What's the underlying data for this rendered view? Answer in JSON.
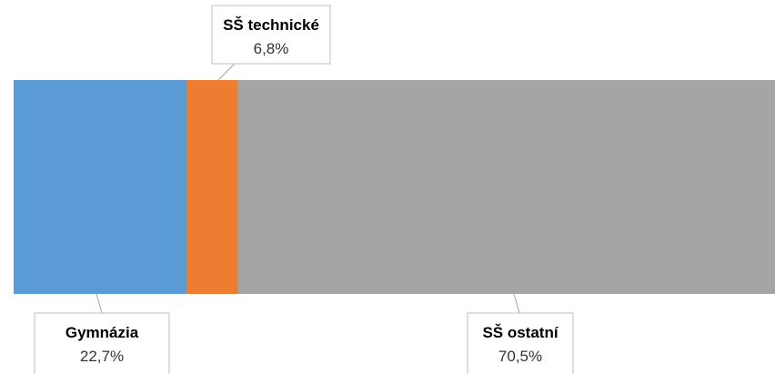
{
  "chart_data": {
    "type": "bar",
    "orientation": "horizontal",
    "stacked": true,
    "title": "",
    "xlabel": "",
    "ylabel": "",
    "grid": false,
    "legend": "none",
    "series": [
      {
        "name": "Gymnázia",
        "value": 22.7,
        "value_label": "22,7%",
        "color": "#5b9bd5",
        "label_position": "bottom"
      },
      {
        "name": "SŠ technické",
        "value": 6.8,
        "value_label": "6,8%",
        "color": "#ed7d31",
        "label_position": "top"
      },
      {
        "name": "SŠ ostatní",
        "value": 70.5,
        "value_label": "70,5%",
        "color": "#a5a5a5",
        "label_position": "bottom"
      }
    ]
  }
}
